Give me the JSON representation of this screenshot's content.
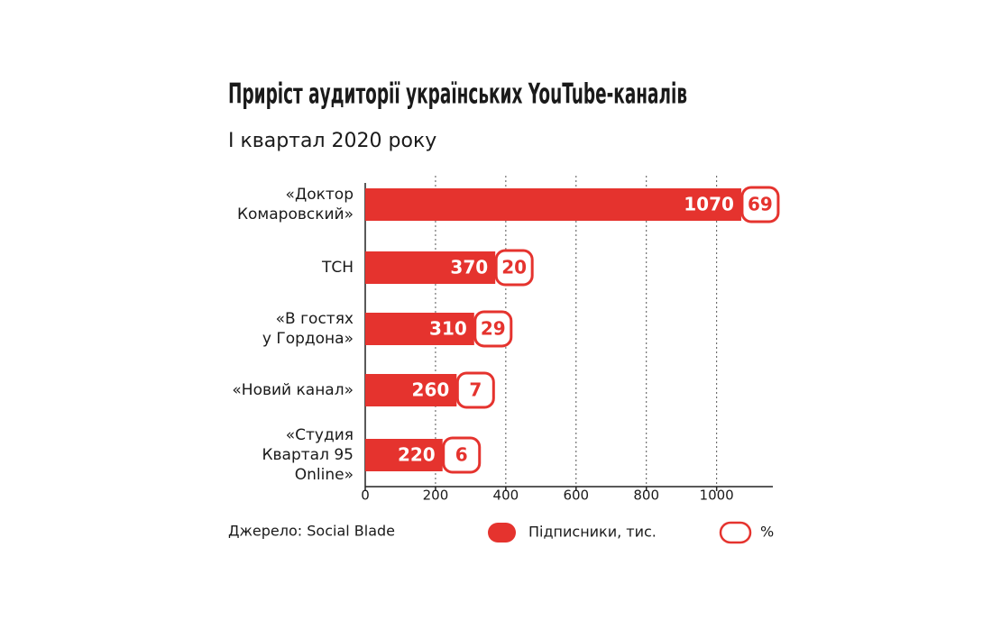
{
  "chart_data": {
    "type": "hbar",
    "title": "Приріст аудиторії українських YouTube-каналів",
    "subtitle": "I квартал 2020 року",
    "categories": [
      "«Доктор\nКомаровский»",
      "ТСН",
      "«В гостях\nу Гордона»",
      "«Новий канал»",
      "«Студия\nКвартал 95\nOnline»"
    ],
    "series": [
      {
        "name": "Підписники, тис.",
        "color": "#e5332e",
        "values": [
          1070,
          370,
          310,
          260,
          220
        ]
      },
      {
        "name": "%",
        "color": "#e5332e",
        "values": [
          69,
          20,
          29,
          7,
          6
        ]
      }
    ],
    "xlim": [
      0,
      1160
    ],
    "xticks": [
      0,
      200,
      400,
      600,
      800,
      1000
    ],
    "grid": true,
    "source": "Джерело: Social Blade"
  }
}
